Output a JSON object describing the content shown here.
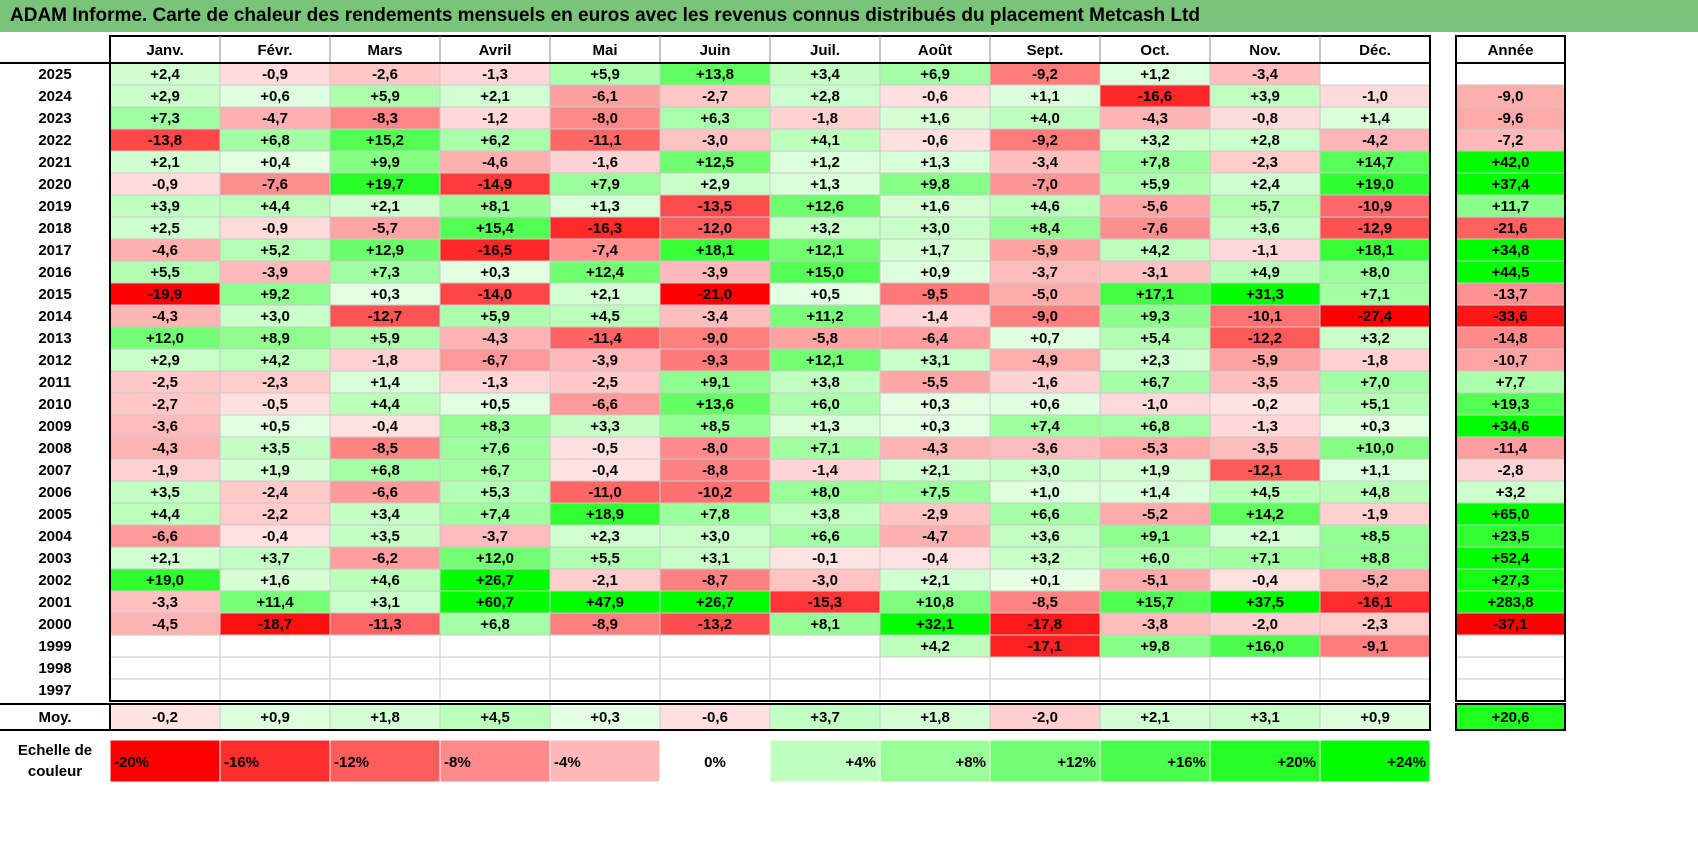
{
  "title": "ADAM Informe. Carte de chaleur des rendements mensuels en euros avec les revenus connus distribués du placement Metcash Ltd",
  "chart_data": {
    "type": "heatmap",
    "months": [
      "Janv.",
      "Févr.",
      "Mars",
      "Avril",
      "Mai",
      "Juin",
      "Juil.",
      "Août",
      "Sept.",
      "Oct.",
      "Nov.",
      "Déc."
    ],
    "year_header": "Année",
    "average_label": "Moy.",
    "rows": [
      {
        "year": "2025",
        "values": [
          "+2,4",
          "-0,9",
          "-2,6",
          "-1,3",
          "+5,9",
          "+13,8",
          "+3,4",
          "+6,9",
          "-9,2",
          "+1,2",
          "-3,4",
          ""
        ],
        "annual": ""
      },
      {
        "year": "2024",
        "values": [
          "+2,9",
          "+0,6",
          "+5,9",
          "+2,1",
          "-6,1",
          "-2,7",
          "+2,8",
          "-0,6",
          "+1,1",
          "-16,6",
          "+3,9",
          "-1,0"
        ],
        "annual": "-9,0"
      },
      {
        "year": "2023",
        "values": [
          "+7,3",
          "-4,7",
          "-8,3",
          "-1,2",
          "-8,0",
          "+6,3",
          "-1,8",
          "+1,6",
          "+4,0",
          "-4,3",
          "-0,8",
          "+1,4"
        ],
        "annual": "-9,6"
      },
      {
        "year": "2022",
        "values": [
          "-13,8",
          "+6,8",
          "+15,2",
          "+6,2",
          "-11,1",
          "-3,0",
          "+4,1",
          "-0,6",
          "-9,2",
          "+3,2",
          "+2,8",
          "-4,2"
        ],
        "annual": "-7,2"
      },
      {
        "year": "2021",
        "values": [
          "+2,1",
          "+0,4",
          "+9,9",
          "-4,6",
          "-1,6",
          "+12,5",
          "+1,2",
          "+1,3",
          "-3,4",
          "+7,8",
          "-2,3",
          "+14,7"
        ],
        "annual": "+42,0"
      },
      {
        "year": "2020",
        "values": [
          "-0,9",
          "-7,6",
          "+19,7",
          "-14,9",
          "+7,9",
          "+2,9",
          "+1,3",
          "+9,8",
          "-7,0",
          "+5,9",
          "+2,4",
          "+19,0"
        ],
        "annual": "+37,4"
      },
      {
        "year": "2019",
        "values": [
          "+3,9",
          "+4,4",
          "+2,1",
          "+8,1",
          "+1,3",
          "-13,5",
          "+12,6",
          "+1,6",
          "+4,6",
          "-5,6",
          "+5,7",
          "-10,9"
        ],
        "annual": "+11,7"
      },
      {
        "year": "2018",
        "values": [
          "+2,5",
          "-0,9",
          "-5,7",
          "+15,4",
          "-16,3",
          "-12,0",
          "+3,2",
          "+3,0",
          "+8,4",
          "-7,6",
          "+3,6",
          "-12,9"
        ],
        "annual": "-21,6"
      },
      {
        "year": "2017",
        "values": [
          "-4,6",
          "+5,2",
          "+12,9",
          "-16,5",
          "-7,4",
          "+18,1",
          "+12,1",
          "+1,7",
          "-5,9",
          "+4,2",
          "-1,1",
          "+18,1"
        ],
        "annual": "+34,8"
      },
      {
        "year": "2016",
        "values": [
          "+5,5",
          "-3,9",
          "+7,3",
          "+0,3",
          "+12,4",
          "-3,9",
          "+15,0",
          "+0,9",
          "-3,7",
          "-3,1",
          "+4,9",
          "+8,0"
        ],
        "annual": "+44,5"
      },
      {
        "year": "2015",
        "values": [
          "-19,9",
          "+9,2",
          "+0,3",
          "-14,0",
          "+2,1",
          "-21,0",
          "+0,5",
          "-9,5",
          "-5,0",
          "+17,1",
          "+31,3",
          "+7,1"
        ],
        "annual": "-13,7"
      },
      {
        "year": "2014",
        "values": [
          "-4,3",
          "+3,0",
          "-12,7",
          "+5,9",
          "+4,5",
          "-3,4",
          "+11,2",
          "-1,4",
          "-9,0",
          "+9,3",
          "-10,1",
          "-27,4"
        ],
        "annual": "-33,6"
      },
      {
        "year": "2013",
        "values": [
          "+12,0",
          "+8,9",
          "+5,9",
          "-4,3",
          "-11,4",
          "-9,0",
          "-5,8",
          "-6,4",
          "+0,7",
          "+5,4",
          "-12,2",
          "+3,2"
        ],
        "annual": "-14,8"
      },
      {
        "year": "2012",
        "values": [
          "+2,9",
          "+4,2",
          "-1,8",
          "-6,7",
          "-3,9",
          "-9,3",
          "+12,1",
          "+3,1",
          "-4,9",
          "+2,3",
          "-5,9",
          "-1,8"
        ],
        "annual": "-10,7"
      },
      {
        "year": "2011",
        "values": [
          "-2,5",
          "-2,3",
          "+1,4",
          "-1,3",
          "-2,5",
          "+9,1",
          "+3,8",
          "-5,5",
          "-1,6",
          "+6,7",
          "-3,5",
          "+7,0"
        ],
        "annual": "+7,7"
      },
      {
        "year": "2010",
        "values": [
          "-2,7",
          "-0,5",
          "+4,4",
          "+0,5",
          "-6,6",
          "+13,6",
          "+6,0",
          "+0,3",
          "+0,6",
          "-1,0",
          "-0,2",
          "+5,1"
        ],
        "annual": "+19,3"
      },
      {
        "year": "2009",
        "values": [
          "-3,6",
          "+0,5",
          "-0,4",
          "+8,3",
          "+3,3",
          "+8,5",
          "+1,3",
          "+0,3",
          "+7,4",
          "+6,8",
          "-1,3",
          "+0,3"
        ],
        "annual": "+34,6"
      },
      {
        "year": "2008",
        "values": [
          "-4,3",
          "+3,5",
          "-8,5",
          "+7,6",
          "-0,5",
          "-8,0",
          "+7,1",
          "-4,3",
          "-3,6",
          "-5,3",
          "-3,5",
          "+10,0"
        ],
        "annual": "-11,4"
      },
      {
        "year": "2007",
        "values": [
          "-1,9",
          "+1,9",
          "+6,8",
          "+6,7",
          "-0,4",
          "-8,8",
          "-1,4",
          "+2,1",
          "+3,0",
          "+1,9",
          "-12,1",
          "+1,1"
        ],
        "annual": "-2,8"
      },
      {
        "year": "2006",
        "values": [
          "+3,5",
          "-2,4",
          "-6,6",
          "+5,3",
          "-11,0",
          "-10,2",
          "+8,0",
          "+7,5",
          "+1,0",
          "+1,4",
          "+4,5",
          "+4,8"
        ],
        "annual": "+3,2"
      },
      {
        "year": "2005",
        "values": [
          "+4,4",
          "-2,2",
          "+3,4",
          "+7,4",
          "+18,9",
          "+7,8",
          "+3,8",
          "-2,9",
          "+6,6",
          "-5,2",
          "+14,2",
          "-1,9"
        ],
        "annual": "+65,0"
      },
      {
        "year": "2004",
        "values": [
          "-6,6",
          "-0,4",
          "+3,5",
          "-3,7",
          "+2,3",
          "+3,0",
          "+6,6",
          "-4,7",
          "+3,6",
          "+9,1",
          "+2,1",
          "+8,5"
        ],
        "annual": "+23,5"
      },
      {
        "year": "2003",
        "values": [
          "+2,1",
          "+3,7",
          "-6,2",
          "+12,0",
          "+5,5",
          "+3,1",
          "-0,1",
          "-0,4",
          "+3,2",
          "+6,0",
          "+7,1",
          "+8,8"
        ],
        "annual": "+52,4"
      },
      {
        "year": "2002",
        "values": [
          "+19,0",
          "+1,6",
          "+4,6",
          "+26,7",
          "-2,1",
          "-8,7",
          "-3,0",
          "+2,1",
          "+0,1",
          "-5,1",
          "-0,4",
          "-5,2"
        ],
        "annual": "+27,3"
      },
      {
        "year": "2001",
        "values": [
          "-3,3",
          "+11,4",
          "+3,1",
          "+60,7",
          "+47,9",
          "+26,7",
          "-15,3",
          "+10,8",
          "-8,5",
          "+15,7",
          "+37,5",
          "-16,1"
        ],
        "annual": "+283,8"
      },
      {
        "year": "2000",
        "values": [
          "-4,5",
          "-18,7",
          "-11,3",
          "+6,8",
          "-8,9",
          "-13,2",
          "+8,1",
          "+32,1",
          "-17,8",
          "-3,8",
          "-2,0",
          "-2,3"
        ],
        "annual": "-37,1"
      },
      {
        "year": "1999",
        "values": [
          "",
          "",
          "",
          "",
          "",
          "",
          "",
          "+4,2",
          "-17,1",
          "+9,8",
          "+16,0",
          "-9,1"
        ],
        "annual": ""
      },
      {
        "year": "1998",
        "values": [
          "",
          "",
          "",
          "",
          "",
          "",
          "",
          "",
          "",
          "",
          "",
          ""
        ],
        "annual": ""
      },
      {
        "year": "1997",
        "values": [
          "",
          "",
          "",
          "",
          "",
          "",
          "",
          "",
          "",
          "",
          "",
          ""
        ],
        "annual": ""
      }
    ],
    "averages": [
      "-0,2",
      "+0,9",
      "+1,8",
      "+4,5",
      "+0,3",
      "-0,6",
      "+3,7",
      "+1,8",
      "-2,0",
      "+2,1",
      "+3,1",
      "+0,9"
    ],
    "average_annual": "+20,6",
    "scale_label": [
      "Echelle de",
      "couleur"
    ],
    "scale": [
      "-20%",
      "-16%",
      "-12%",
      "-8%",
      "-4%",
      "0%",
      "+4%",
      "+8%",
      "+12%",
      "+16%",
      "+20%",
      "+24%"
    ],
    "colors": {
      "negative": "#ff0000",
      "positive": "#00ff00",
      "neutral": "#ffffff",
      "title_bg": "#7ac47a"
    }
  }
}
